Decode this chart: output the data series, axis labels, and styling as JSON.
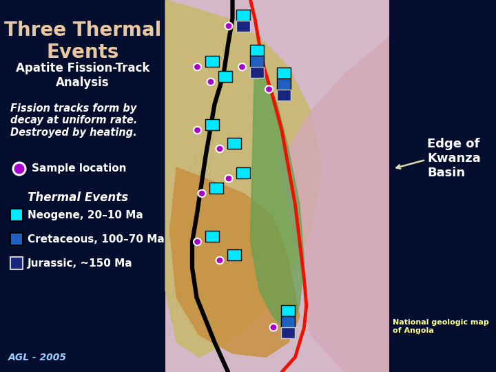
{
  "background_color": "#050e2e",
  "title": "Three Thermal\nEvents",
  "title_color": "#e8c8a0",
  "title_fontsize": 20,
  "subtitle": "Apatite Fission-Track\nAnalysis",
  "subtitle_color": "#ffffff",
  "subtitle_fontsize": 12,
  "italic_text": "Fission tracks form by\ndecay at uniform rate.\nDestroyed by heating.",
  "italic_color": "#ffffff",
  "italic_fontsize": 10.5,
  "sample_label": "Sample location",
  "sample_color": "#ffffff",
  "sample_fontsize": 11,
  "thermal_label": "Thermal Events",
  "thermal_color": "#ffffff",
  "thermal_fontsize": 12,
  "legend_items": [
    {
      "label": "Neogene, 20–10 Ma",
      "face_color": "#00e8ff",
      "edge_color": "#000000"
    },
    {
      "label": "Cretaceous, 100–70 Ma",
      "face_color": "#2060c0",
      "edge_color": "#000000"
    },
    {
      "label": "Jurassic, ~150 Ma",
      "face_color": "#1a2580",
      "edge_color": "#cccccc"
    }
  ],
  "legend_fontsize": 11,
  "legend_color": "#ffffff",
  "edge_of_kwanza_text": "Edge of\nKwanza\nBasin",
  "edge_text_color": "#ffffff",
  "edge_fontsize": 13,
  "national_geo_text": "National geologic map\nof Angola",
  "national_geo_color": "#ffff88",
  "national_geo_fontsize": 8,
  "agl_text": "AGL - 2005",
  "agl_color": "#99ccff",
  "agl_fontsize": 10,
  "sample_circle_face": "#aa00cc",
  "sample_circle_edge": "#ffffff",
  "arrow_color": "#ddddaa",
  "map_bg_color": "#d8c8b8",
  "neo_color": "#00e8ff",
  "cret_color": "#2060c0",
  "jur_color": "#1a2580",
  "purple_color": "#aa00cc"
}
